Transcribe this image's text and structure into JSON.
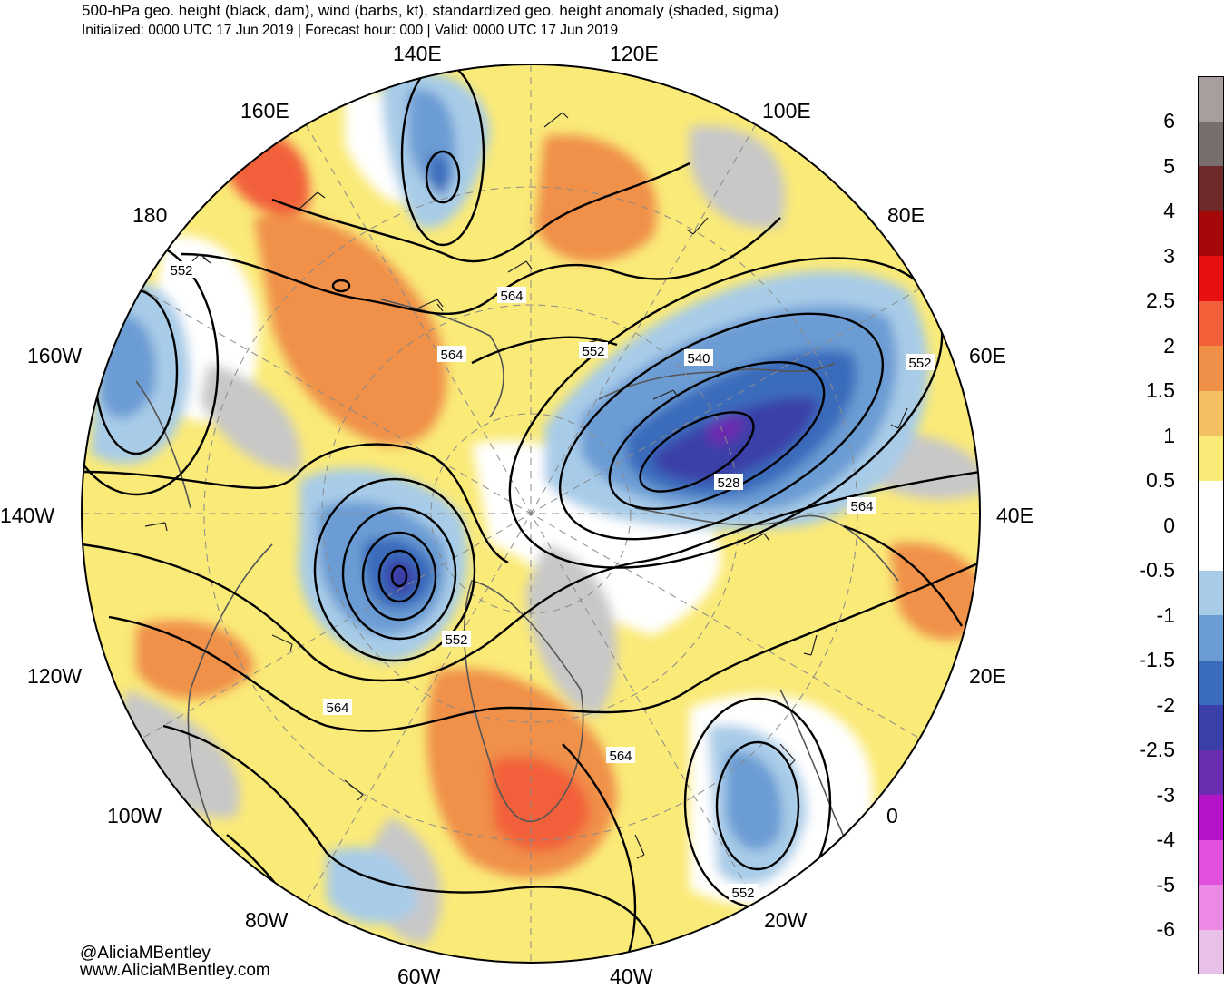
{
  "header": {
    "title": "500-hPa geo. height (black, dam), wind (barbs, kt), standardized geo. height anomaly (shaded, sigma)",
    "subtitle": "Initialized: 0000 UTC 17 Jun 2019 | Forecast hour: 000 | Valid: 0000 UTC 17 Jun 2019"
  },
  "map": {
    "longitude_labels": [
      "140E",
      "120E",
      "160E",
      "100E",
      "180",
      "80E",
      "160W",
      "60E",
      "140W",
      "40E",
      "120W",
      "20E",
      "100W",
      "0",
      "80W",
      "20W",
      "60W",
      "40W"
    ],
    "contour_labels": [
      "552",
      "564",
      "564",
      "552",
      "540",
      "552",
      "528",
      "564",
      "552",
      "564",
      "564",
      "552"
    ],
    "anomaly_centers": [
      {
        "name": "polar-low-anomaly",
        "sigma": -3
      },
      {
        "name": "kara-sea-low-anomaly",
        "sigma": -3
      },
      {
        "name": "greenland-high-anomaly",
        "sigma": 2
      },
      {
        "name": "east-siberia-high-anomaly",
        "sigma": 2
      }
    ]
  },
  "colorbar": {
    "labels": [
      "6",
      "5",
      "4",
      "3",
      "2.5",
      "2",
      "1.5",
      "1",
      "0.5",
      "0",
      "-0.5",
      "-1",
      "-1.5",
      "-2",
      "-2.5",
      "-3",
      "-4",
      "-5",
      "-6"
    ],
    "colors": [
      "#a89e9e",
      "#786e6e",
      "#6e2a2a",
      "#a50808",
      "#e81010",
      "#f2603a",
      "#f09048",
      "#f2c060",
      "#faea78",
      "#ffffff",
      "#ffffff",
      "#a8cce8",
      "#6c9cd4",
      "#3a6cbc",
      "#3a40a8",
      "#6a2cb0",
      "#b414c8",
      "#e050dc",
      "#ec88e6",
      "#e8c0e8"
    ]
  },
  "credits": {
    "handle": "@AliciaMBentley",
    "website": "www.AliciaMBentley.com"
  }
}
